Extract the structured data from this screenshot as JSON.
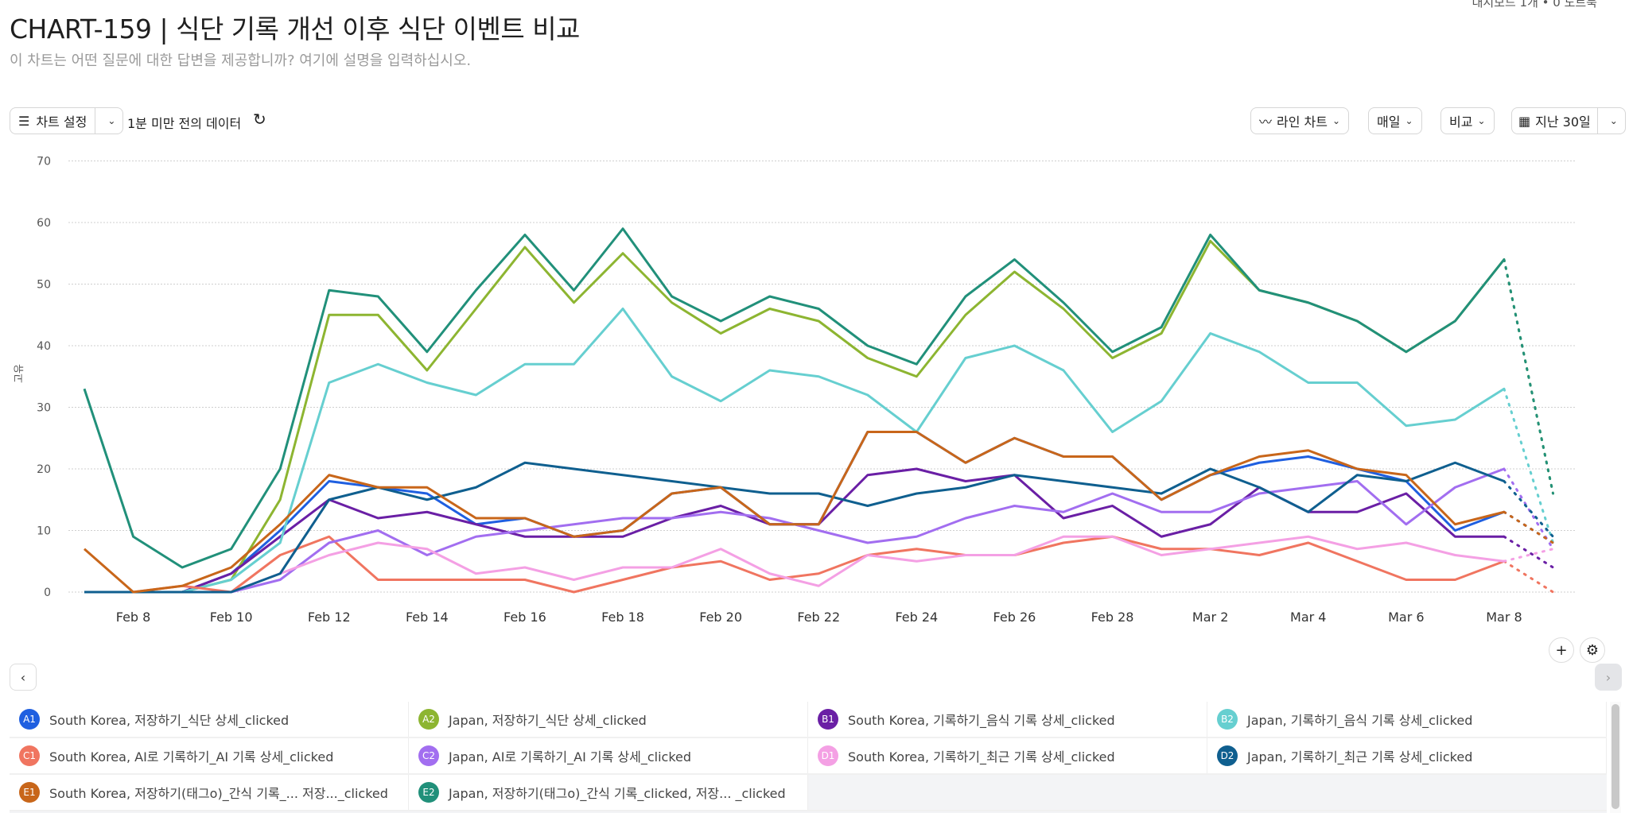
{
  "header": {
    "top_note": "대시보드 1개 • 0 노트북",
    "title": "CHART-159 | 식단 기록 개선 이후 식단 이벤트 비교",
    "subtitle": "이 차트는 어떤 질문에 대한 답변을 제공합니까? 여기에 설명을 입력하십시오."
  },
  "toolbar": {
    "chart_settings": "차트 설정",
    "freshness": "1분 미만 전의 데이터",
    "chart_type": "라인 차트",
    "interval": "매일",
    "compare": "비교",
    "date_range": "지난 30일"
  },
  "icons": {
    "settings": "sliders-icon",
    "refresh": "refresh-icon",
    "line": "line-chart-icon",
    "calendar": "calendar-icon",
    "add": "plus-icon",
    "gear": "gear-icon"
  },
  "chart_data": {
    "type": "line",
    "ylabel": "고유",
    "ylim": [
      0,
      70
    ],
    "yticks": [
      0,
      10,
      20,
      30,
      40,
      50,
      60,
      70
    ],
    "grid": true,
    "x": [
      "Feb 7",
      "Feb 8",
      "Feb 9",
      "Feb 10",
      "Feb 11",
      "Feb 12",
      "Feb 13",
      "Feb 14",
      "Feb 15",
      "Feb 16",
      "Feb 17",
      "Feb 18",
      "Feb 19",
      "Feb 20",
      "Feb 21",
      "Feb 22",
      "Feb 23",
      "Feb 24",
      "Feb 25",
      "Feb 26",
      "Feb 27",
      "Feb 28",
      "Mar 1",
      "Mar 2",
      "Mar 3",
      "Mar 4",
      "Mar 5",
      "Mar 6",
      "Mar 7",
      "Mar 8",
      "Mar 9"
    ],
    "xtick_labels": [
      "Feb 8",
      "Feb 10",
      "Feb 12",
      "Feb 14",
      "Feb 16",
      "Feb 18",
      "Feb 20",
      "Feb 22",
      "Feb 24",
      "Feb 26",
      "Feb 28",
      "Mar 2",
      "Mar 4",
      "Mar 6",
      "Mar 8"
    ],
    "last_point_partial": true,
    "series": [
      {
        "id": "A1",
        "name": "South Korea, 저장하기_식단 상세_clicked",
        "color": "#1f5fe0",
        "values": [
          0,
          0,
          0,
          3,
          10,
          18,
          17,
          16,
          11,
          12,
          9,
          10,
          16,
          17,
          11,
          11,
          26,
          26,
          21,
          25,
          22,
          22,
          15,
          19,
          21,
          22,
          20,
          18,
          10,
          13,
          8
        ]
      },
      {
        "id": "A2",
        "name": "Japan, 저장하기_식단 상세_clicked",
        "color": "#8db531",
        "values": [
          0,
          0,
          0,
          2,
          15,
          45,
          45,
          36,
          46,
          56,
          47,
          55,
          47,
          42,
          46,
          44,
          38,
          35,
          45,
          52,
          46,
          38,
          42,
          57,
          49,
          47,
          44,
          39,
          44,
          54,
          16
        ]
      },
      {
        "id": "B1",
        "name": "South Korea, 기록하기_음식 기록 상세_clicked",
        "color": "#6a1fa5",
        "values": [
          0,
          0,
          0,
          3,
          9,
          15,
          12,
          13,
          11,
          9,
          9,
          9,
          12,
          14,
          11,
          11,
          19,
          20,
          18,
          19,
          12,
          14,
          9,
          11,
          17,
          13,
          13,
          16,
          9,
          9,
          4
        ]
      },
      {
        "id": "B2",
        "name": "Japan, 기록하기_음식 기록 상세_clicked",
        "color": "#66cfd0",
        "values": [
          0,
          0,
          0,
          2,
          8,
          34,
          37,
          34,
          32,
          37,
          37,
          46,
          35,
          31,
          36,
          35,
          32,
          26,
          38,
          40,
          36,
          26,
          31,
          42,
          39,
          34,
          34,
          27,
          28,
          33,
          8
        ]
      },
      {
        "id": "C1",
        "name": "South Korea, AI로 기록하기_AI 기록 상세_clicked",
        "color": "#f07560",
        "values": [
          0,
          0,
          1,
          0,
          6,
          9,
          2,
          2,
          2,
          2,
          0,
          2,
          4,
          5,
          2,
          3,
          6,
          7,
          6,
          6,
          8,
          9,
          7,
          7,
          6,
          8,
          5,
          2,
          2,
          5,
          0
        ]
      },
      {
        "id": "C2",
        "name": "Japan, AI로 기록하기_AI 기록 상세_clicked",
        "color": "#a26ef0",
        "values": [
          0,
          0,
          0,
          0,
          2,
          8,
          10,
          6,
          9,
          10,
          11,
          12,
          12,
          13,
          12,
          10,
          8,
          9,
          12,
          14,
          13,
          16,
          13,
          13,
          16,
          17,
          18,
          11,
          17,
          20,
          7
        ]
      },
      {
        "id": "D1",
        "name": "South Korea, 기록하기_최근 기록 상세_clicked",
        "color": "#f4a0e4",
        "values": [
          0,
          0,
          0,
          0,
          3,
          6,
          8,
          7,
          3,
          4,
          2,
          4,
          4,
          7,
          3,
          1,
          6,
          5,
          6,
          6,
          9,
          9,
          6,
          7,
          8,
          9,
          7,
          8,
          6,
          5,
          7
        ]
      },
      {
        "id": "D2",
        "name": "Japan, 기록하기_최근 기록 상세_clicked",
        "color": "#0f5f8f",
        "values": [
          0,
          0,
          0,
          0,
          3,
          15,
          17,
          15,
          17,
          21,
          20,
          19,
          18,
          17,
          16,
          16,
          14,
          16,
          17,
          19,
          18,
          17,
          16,
          20,
          17,
          13,
          19,
          18,
          21,
          18,
          9
        ]
      },
      {
        "id": "E1",
        "name": "South Korea, 저장하기(태그o)_간식 기록_... 저장..._clicked",
        "color": "#c8661a",
        "values": [
          7,
          0,
          1,
          4,
          11,
          19,
          17,
          17,
          12,
          12,
          9,
          10,
          16,
          17,
          11,
          11,
          26,
          26,
          21,
          25,
          22,
          22,
          15,
          19,
          22,
          23,
          20,
          19,
          11,
          13,
          8
        ]
      },
      {
        "id": "E2",
        "name": "Japan, 저장하기(태그o)_간식 기록_clicked, 저장... _clicked",
        "color": "#21907a",
        "values": [
          33,
          9,
          4,
          7,
          20,
          49,
          48,
          39,
          49,
          58,
          49,
          59,
          48,
          44,
          48,
          46,
          40,
          37,
          48,
          54,
          47,
          39,
          43,
          58,
          49,
          47,
          44,
          39,
          44,
          54,
          16
        ]
      }
    ]
  },
  "legend_order": [
    0,
    1,
    2,
    3,
    4,
    5,
    6,
    7,
    8,
    9
  ]
}
